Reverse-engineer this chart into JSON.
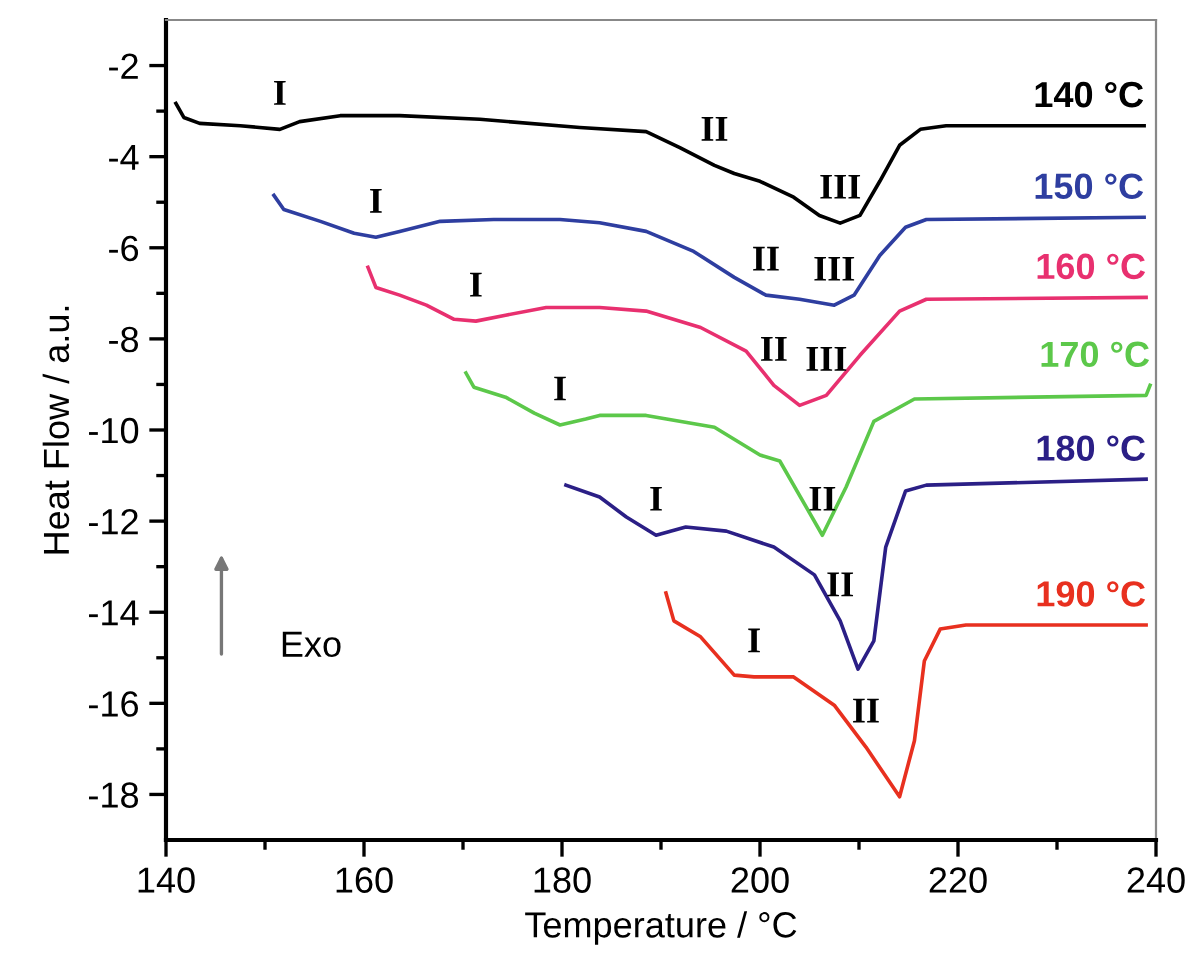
{
  "chart_data": {
    "type": "line",
    "xlabel": "Temperature / °C",
    "ylabel": "Heat Flow / a.u.",
    "xlim": [
      140,
      240
    ],
    "xticks": [
      140,
      160,
      180,
      200,
      220,
      240
    ],
    "ylim": [
      -19,
      -1
    ],
    "yticks": [
      -18,
      -16,
      -14,
      -12,
      -10,
      -8,
      -6,
      -4,
      -2
    ],
    "grid": false,
    "legend": false,
    "marker": "none",
    "line_style": "solid",
    "series": [
      {
        "name": "140 °C",
        "color": "#000000",
        "x": [
          141,
          141.8,
          143.4,
          147.5,
          151.5,
          153.5,
          157.6,
          163.6,
          171.7,
          181.8,
          188.5,
          191.9,
          195.4,
          197.4,
          200,
          203.4,
          206,
          208.1,
          210.1,
          212.1,
          214.1,
          216.2,
          218.8,
          238.8
        ],
        "values": [
          -2.83,
          -3.14,
          -3.27,
          -3.32,
          -3.4,
          -3.23,
          -3.1,
          -3.1,
          -3.18,
          -3.36,
          -3.45,
          -3.8,
          -4.19,
          -4.37,
          -4.54,
          -4.89,
          -5.29,
          -5.46,
          -5.29,
          -4.54,
          -3.75,
          -3.4,
          -3.32,
          -3.32
        ]
      },
      {
        "name": "150 °C",
        "color": "#2e3ea0",
        "x": [
          150.9,
          151.9,
          155.6,
          159,
          161.2,
          163.6,
          167.7,
          173.1,
          179.8,
          183.8,
          188.5,
          193.3,
          197.4,
          200.6,
          204,
          207.5,
          209.5,
          212.1,
          214.7,
          216.8,
          238.8
        ],
        "values": [
          -4.85,
          -5.16,
          -5.42,
          -5.68,
          -5.77,
          -5.64,
          -5.42,
          -5.38,
          -5.38,
          -5.45,
          -5.64,
          -6.08,
          -6.65,
          -7.04,
          -7.13,
          -7.26,
          -7.04,
          -6.17,
          -5.55,
          -5.38,
          -5.33
        ]
      },
      {
        "name": "160 °C",
        "color": "#e8306f",
        "x": [
          160.4,
          161.2,
          163.6,
          166.3,
          169.1,
          171.3,
          174.3,
          178.4,
          183.8,
          188.5,
          194,
          198.6,
          201.4,
          204,
          206.7,
          210.1,
          214.1,
          216.8,
          239
        ],
        "values": [
          -6.43,
          -6.87,
          -7.04,
          -7.26,
          -7.57,
          -7.61,
          -7.48,
          -7.31,
          -7.31,
          -7.39,
          -7.75,
          -8.27,
          -9.02,
          -9.46,
          -9.24,
          -8.36,
          -7.39,
          -7.13,
          -7.09
        ]
      },
      {
        "name": "170 °C",
        "color": "#5cc84a",
        "x": [
          170.3,
          171.1,
          174.3,
          177.2,
          179.8,
          182.4,
          183.8,
          188.5,
          195.4,
          200,
          202,
          206.3,
          208.7,
          211.5,
          215.6,
          239,
          239.4
        ],
        "values": [
          -8.75,
          -9.06,
          -9.28,
          -9.63,
          -9.89,
          -9.76,
          -9.68,
          -9.68,
          -9.94,
          -10.55,
          -10.68,
          -12.31,
          -11.25,
          -9.81,
          -9.32,
          -9.24,
          -9.02
        ]
      },
      {
        "name": "180 °C",
        "color": "#2b1f86",
        "x": [
          180.4,
          183.8,
          186.5,
          189.5,
          192.5,
          196.6,
          201.4,
          205.5,
          208.1,
          209.9,
          211.5,
          212.7,
          214.7,
          216.8,
          239
        ],
        "values": [
          -11.21,
          -11.47,
          -11.91,
          -12.31,
          -12.13,
          -12.22,
          -12.57,
          -13.18,
          -14.19,
          -15.25,
          -14.63,
          -12.57,
          -11.34,
          -11.21,
          -11.08
        ]
      },
      {
        "name": "190 °C",
        "color": "#e8301f",
        "x": [
          190.5,
          191.3,
          194,
          197.4,
          199.4,
          203.4,
          207.5,
          210.7,
          214.1,
          215.6,
          216.6,
          218.2,
          220.8,
          239
        ],
        "values": [
          -13.58,
          -14.19,
          -14.54,
          -15.38,
          -15.42,
          -15.42,
          -16.04,
          -16.96,
          -18.05,
          -16.82,
          -15.07,
          -14.37,
          -14.28,
          -14.28
        ]
      }
    ],
    "annotations": [
      {
        "text": "I",
        "x": 151.5,
        "y": -3.4
      },
      {
        "text": "II",
        "x": 195.4,
        "y": -4.19
      },
      {
        "text": "III",
        "x": 208.1,
        "y": -5.46
      },
      {
        "text": "I",
        "x": 161.2,
        "y": -5.77
      },
      {
        "text": "II",
        "x": 200.6,
        "y": -7.04
      },
      {
        "text": "III",
        "x": 207.5,
        "y": -7.26
      },
      {
        "text": "I",
        "x": 171.3,
        "y": -7.61
      },
      {
        "text": "II",
        "x": 201.4,
        "y": -9.02
      },
      {
        "text": "III",
        "x": 206.7,
        "y": -9.24
      },
      {
        "text": "I",
        "x": 179.8,
        "y": -9.89
      },
      {
        "text": "II",
        "x": 206.3,
        "y": -12.31
      },
      {
        "text": "I",
        "x": 189.5,
        "y": -12.31
      },
      {
        "text": "II",
        "x": 208.1,
        "y": -14.19
      },
      {
        "text": "I",
        "x": 199.4,
        "y": -15.42
      },
      {
        "text": "II",
        "x": 210.7,
        "y": -16.96
      },
      "Exo"
    ]
  }
}
